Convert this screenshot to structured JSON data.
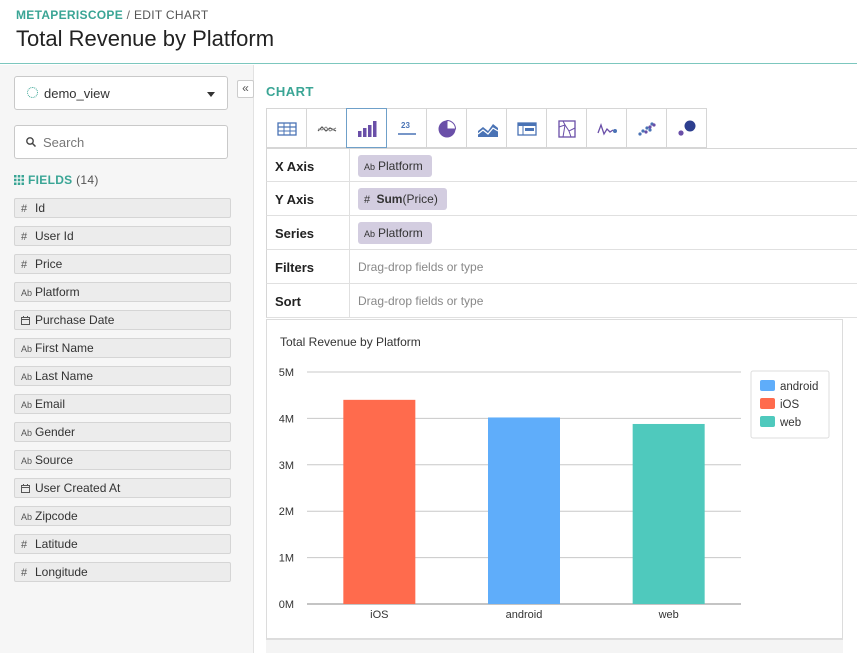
{
  "header": {
    "breadcrumb_root": "METAPERISCOPE",
    "breadcrumb_sep": " / ",
    "breadcrumb_current": "EDIT CHART",
    "title": "Total Revenue by Platform"
  },
  "sidebar": {
    "view_select": "demo_view",
    "collapse_icon": "«",
    "search_placeholder": "Search",
    "fields_label": "FIELDS",
    "fields_count": "(14)",
    "fields": [
      {
        "type": "#",
        "name": "Id"
      },
      {
        "type": "#",
        "name": "User Id"
      },
      {
        "type": "#",
        "name": "Price"
      },
      {
        "type": "Ab",
        "name": "Platform"
      },
      {
        "type": "date",
        "name": "Purchase Date"
      },
      {
        "type": "Ab",
        "name": "First Name"
      },
      {
        "type": "Ab",
        "name": "Last Name"
      },
      {
        "type": "Ab",
        "name": "Email"
      },
      {
        "type": "Ab",
        "name": "Gender"
      },
      {
        "type": "Ab",
        "name": "Source"
      },
      {
        "type": "date",
        "name": "User Created At"
      },
      {
        "type": "Ab",
        "name": "Zipcode"
      },
      {
        "type": "#",
        "name": "Latitude"
      },
      {
        "type": "#",
        "name": "Longitude"
      }
    ]
  },
  "chart_panel": {
    "label": "CHART",
    "chart_types": [
      "table-icon",
      "line-icon",
      "bar-icon",
      "number-icon",
      "pie-icon",
      "area-icon",
      "pivot-icon",
      "map-icon",
      "sparkline-icon",
      "scatter-icon",
      "bubble-icon"
    ],
    "active_chart_type": "bar-icon",
    "number_icon_text": "23",
    "shelves": {
      "x_axis": {
        "label": "X Axis",
        "pill_type": "Ab",
        "pill": "Platform"
      },
      "y_axis": {
        "label": "Y Axis",
        "pill_type": "#",
        "pill_agg": "Sum",
        "pill": "(Price)"
      },
      "series": {
        "label": "Series",
        "pill_type": "Ab",
        "pill": "Platform"
      },
      "filters": {
        "label": "Filters",
        "placeholder": "Drag-drop fields or type"
      },
      "sort": {
        "label": "Sort",
        "placeholder": "Drag-drop fields or type"
      }
    }
  },
  "colors": {
    "accent": "#3aa595",
    "pill": "#d3cde0",
    "android": "#5fadfa",
    "iOS": "#ff6b4d",
    "web": "#4fc9bd"
  },
  "chart_data": {
    "type": "bar",
    "title": "Total Revenue by Platform",
    "categories": [
      "iOS",
      "android",
      "web"
    ],
    "series": [
      {
        "name": "iOS",
        "category": "iOS",
        "value": 4400000,
        "color": "#ff6b4d"
      },
      {
        "name": "android",
        "category": "android",
        "value": 4020000,
        "color": "#5fadfa"
      },
      {
        "name": "web",
        "category": "web",
        "value": 3880000,
        "color": "#4fc9bd"
      }
    ],
    "yticks": [
      0,
      1000000,
      2000000,
      3000000,
      4000000,
      5000000
    ],
    "ytick_labels": [
      "0M",
      "1M",
      "2M",
      "3M",
      "4M",
      "5M"
    ],
    "ylim": [
      0,
      5000000
    ],
    "grid": true,
    "legend": {
      "position": "top-right",
      "entries": [
        "android",
        "iOS",
        "web"
      ]
    }
  }
}
